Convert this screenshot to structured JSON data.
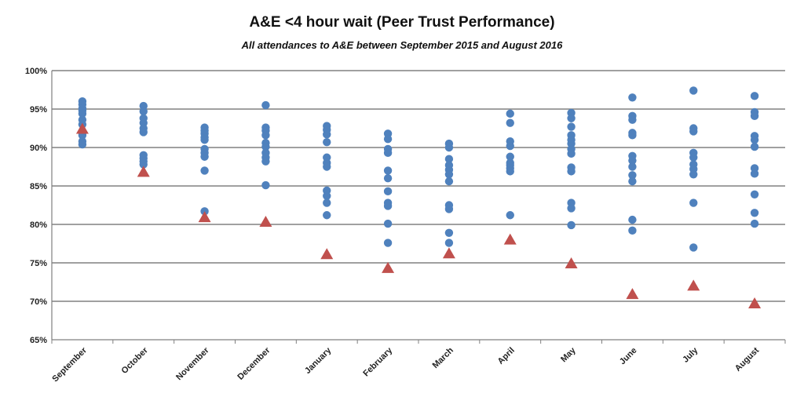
{
  "chart_data": {
    "type": "scatter",
    "title": "A&E <4 hour wait (Peer Trust Performance)",
    "subtitle": "All attendances to A&E between September 2015 and August 2016",
    "xlabel": "",
    "ylabel": "",
    "ylim": [
      65,
      100
    ],
    "yticks": [
      65,
      70,
      75,
      80,
      85,
      90,
      95,
      100
    ],
    "ytick_labels": [
      "65%",
      "70%",
      "75%",
      "80%",
      "85%",
      "90%",
      "95%",
      "100%"
    ],
    "grid": "horizontal",
    "legend": "none",
    "categories": [
      "September",
      "October",
      "November",
      "December",
      "January",
      "February",
      "March",
      "April",
      "May",
      "June",
      "July",
      "August"
    ],
    "colors": {
      "peers": "#4F81BD",
      "trust": "#C0504D",
      "grid": "#808080"
    },
    "series": [
      {
        "marker": "circle",
        "values": [
          [
            96.0,
            95.6,
            95.1,
            94.8,
            94.4,
            93.6,
            93.0,
            92.0,
            91.6,
            90.8,
            90.4
          ],
          [
            95.4,
            94.7,
            93.8,
            93.2,
            92.5,
            92.0,
            89.0,
            88.6,
            88.2,
            87.8
          ],
          [
            92.6,
            92.2,
            91.8,
            91.3,
            91.0,
            89.8,
            89.3,
            88.8,
            87.0,
            81.7
          ],
          [
            95.5,
            92.6,
            92.2,
            91.6,
            90.6,
            90.1,
            89.3,
            88.7,
            88.2,
            85.1
          ],
          [
            92.8,
            92.3,
            91.7,
            90.7,
            88.7,
            88.0,
            87.5,
            84.4,
            83.7,
            82.8,
            81.2
          ],
          [
            91.8,
            91.1,
            89.8,
            89.3,
            87.0,
            86.0,
            84.3,
            82.8,
            82.4,
            80.1,
            77.6
          ],
          [
            90.5,
            90.0,
            88.5,
            87.7,
            87.1,
            86.5,
            85.6,
            82.5,
            82.0,
            78.9,
            77.6
          ],
          [
            94.4,
            93.2,
            90.8,
            90.2,
            88.8,
            88.0,
            87.7,
            87.3,
            86.9,
            81.2
          ],
          [
            94.5,
            93.8,
            92.7,
            91.6,
            91.0,
            90.5,
            89.8,
            89.2,
            87.4,
            86.9,
            82.8,
            82.1,
            79.9
          ],
          [
            96.5,
            94.1,
            93.6,
            91.9,
            91.6,
            88.9,
            88.3,
            87.5,
            86.4,
            85.6,
            80.6,
            79.2
          ],
          [
            97.4,
            92.5,
            92.1,
            89.3,
            88.7,
            87.8,
            87.2,
            86.5,
            82.8,
            77.0
          ],
          [
            96.7,
            94.6,
            94.1,
            91.5,
            91.0,
            90.1,
            87.3,
            86.6,
            83.9,
            81.5,
            80.1
          ]
        ]
      },
      {
        "marker": "triangle",
        "values": [
          92.4,
          86.8,
          80.9,
          80.3,
          76.1,
          74.3,
          76.2,
          78.0,
          74.9,
          70.9,
          72.0,
          69.7
        ]
      }
    ]
  }
}
